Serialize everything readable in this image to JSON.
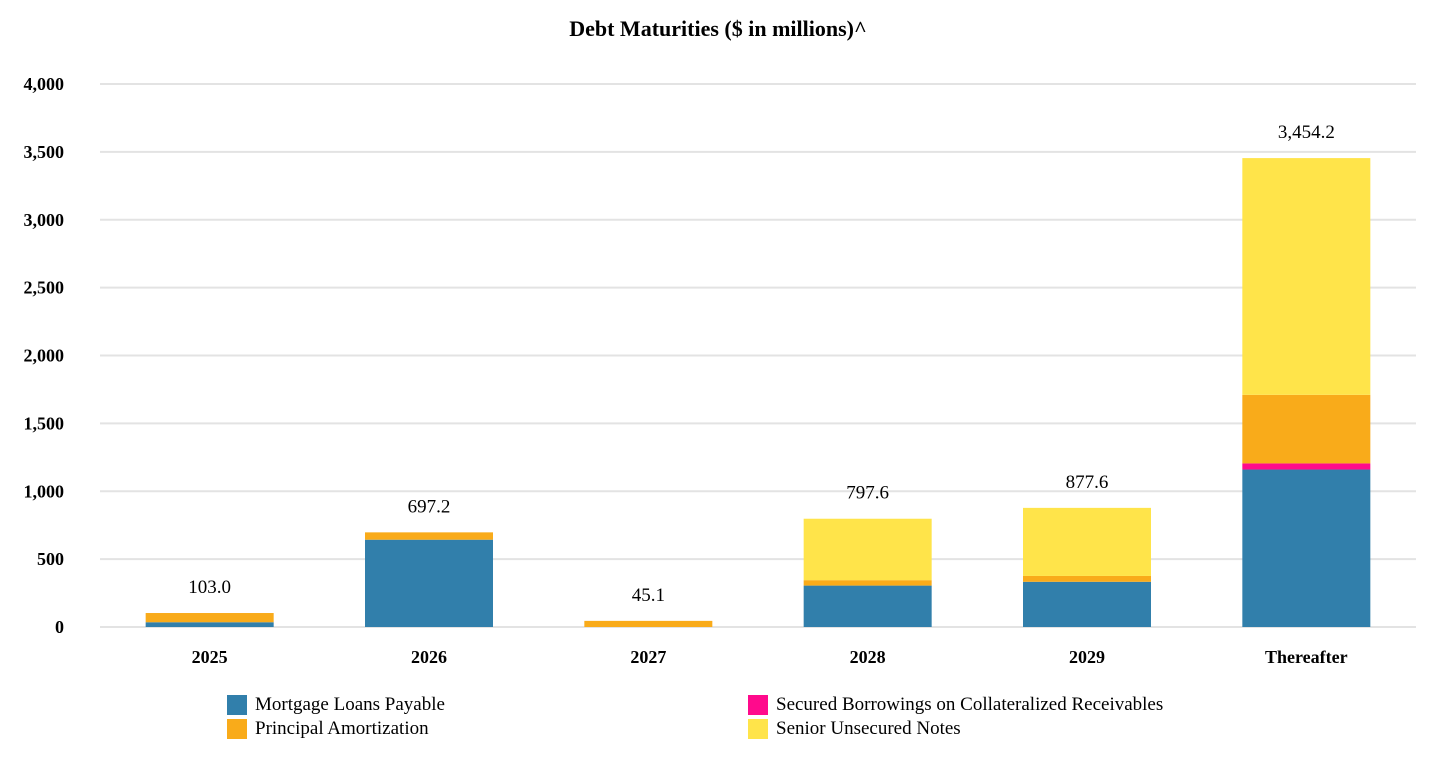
{
  "chart_data": {
    "type": "bar",
    "stacked": true,
    "title": "Debt Maturities ($ in millions)^",
    "xlabel": "",
    "ylabel": "",
    "ylim": [
      0,
      4000
    ],
    "yticks": [
      0,
      500,
      1000,
      1500,
      2000,
      2500,
      3000,
      3500,
      4000
    ],
    "ytick_labels": [
      "0",
      "500",
      "1,000",
      "1,500",
      "2,000",
      "2,500",
      "3,000",
      "3,500",
      "4,000"
    ],
    "grid": true,
    "categories": [
      "2025",
      "2026",
      "2027",
      "2028",
      "2029",
      "Thereafter"
    ],
    "series": [
      {
        "name": "Mortgage Loans Payable",
        "color": "#317FAB",
        "values": [
          35,
          643,
          0,
          305,
          333,
          1160
        ]
      },
      {
        "name": "Secured Borrowings on Collateralized Receivables",
        "color": "#FF0A8C",
        "values": [
          0,
          0,
          0,
          0,
          0,
          45
        ]
      },
      {
        "name": "Principal Amortization",
        "color": "#F9AB1A",
        "values": [
          68,
          54.2,
          45.1,
          40,
          43,
          505
        ]
      },
      {
        "name": "Senior Unsecured Notes",
        "color": "#FFE44A",
        "values": [
          0,
          0,
          0,
          452.6,
          501.6,
          1744.2
        ]
      }
    ],
    "totals": [
      "103.0",
      "697.2",
      "45.1",
      "797.6",
      "877.6",
      "3,454.2"
    ],
    "legend_position": "bottom"
  }
}
